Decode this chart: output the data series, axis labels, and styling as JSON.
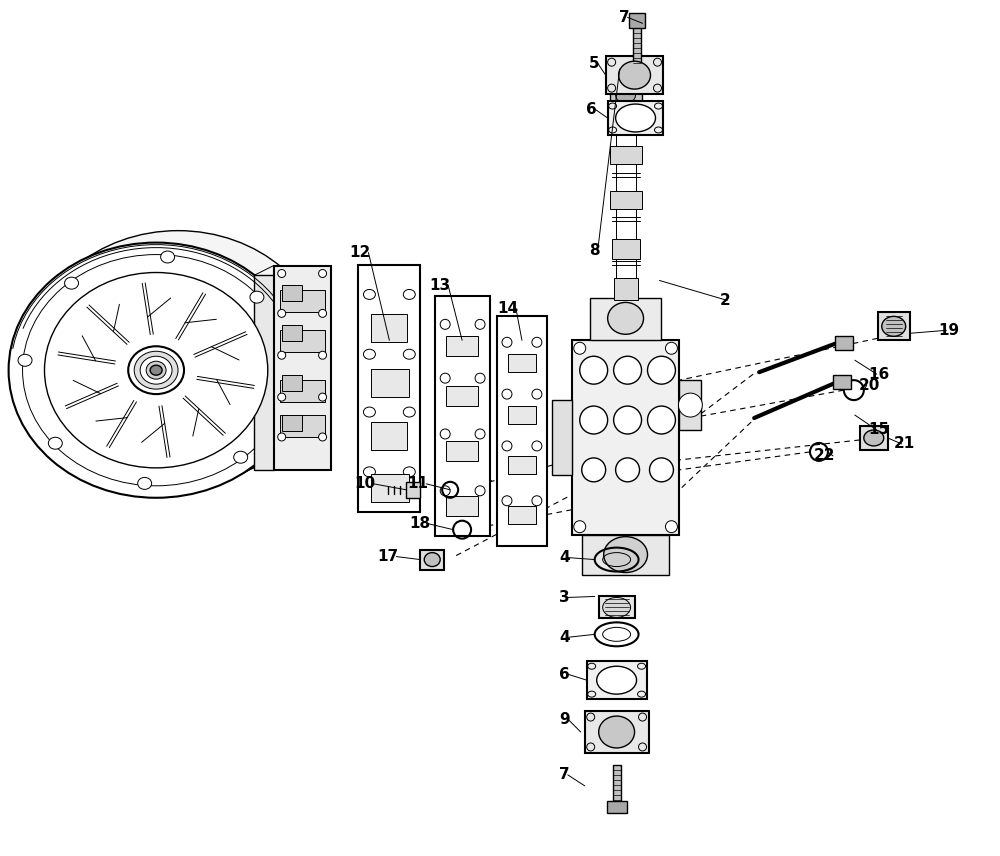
{
  "bg_color": "#ffffff",
  "line_color": "#000000",
  "fig_width": 10.0,
  "fig_height": 8.56,
  "dpi": 100
}
